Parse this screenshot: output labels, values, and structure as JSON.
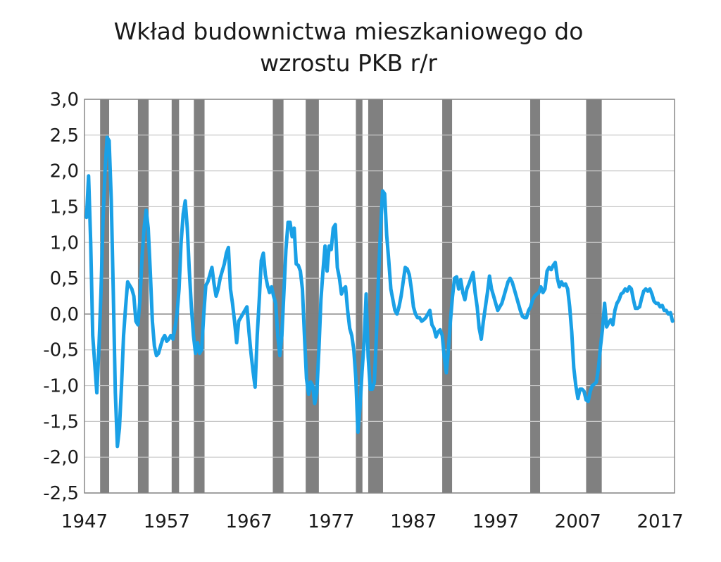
{
  "chart_data": {
    "type": "line",
    "title_lines": [
      "Wkład budownictwa mieszkaniowego do",
      "wzrostu PKB r/r"
    ],
    "xlabel": "",
    "ylabel": "",
    "xlim": [
      1947,
      2018.75
    ],
    "ylim": [
      -2.5,
      3.0
    ],
    "x_ticks": [
      1947,
      1957,
      1967,
      1977,
      1987,
      1997,
      2007,
      2017
    ],
    "y_ticks": [
      3.0,
      2.5,
      2.0,
      1.5,
      1.0,
      0.5,
      0.0,
      -0.5,
      -1.0,
      -1.5,
      -2.0,
      -2.5
    ],
    "y_tick_labels": [
      "3,0",
      "2,5",
      "2,0",
      "1,5",
      "1,0",
      "0,5",
      "0,0",
      "-0,5",
      "-1,0",
      "-1,5",
      "-2,0",
      "-2,5"
    ],
    "grid": true,
    "colors": {
      "line": "#1aa0e6",
      "recession": "#808080",
      "grid": "#c8c8c8",
      "axis": "#7f7f7f"
    },
    "recessions": [
      [
        1948.9,
        1950.0
      ],
      [
        1953.5,
        1954.8
      ],
      [
        1957.6,
        1958.5
      ],
      [
        1960.3,
        1961.6
      ],
      [
        1969.9,
        1971.2
      ],
      [
        1973.9,
        1975.5
      ],
      [
        1980.0,
        1980.8
      ],
      [
        1981.5,
        1983.3
      ],
      [
        1990.5,
        1991.7
      ],
      [
        2001.2,
        2002.4
      ],
      [
        2008.0,
        2009.9
      ]
    ],
    "series": [
      {
        "values": [
          [
            1947.25,
            1.35
          ],
          [
            1947.5,
            1.93
          ],
          [
            1947.75,
            1.0
          ],
          [
            1948.0,
            -0.3
          ],
          [
            1948.25,
            -0.7
          ],
          [
            1948.5,
            -1.1
          ],
          [
            1948.75,
            -0.5
          ],
          [
            1949.0,
            0.3
          ],
          [
            1949.25,
            1.3
          ],
          [
            1949.5,
            2.0
          ],
          [
            1949.75,
            2.47
          ],
          [
            1950.0,
            2.42
          ],
          [
            1950.25,
            1.6
          ],
          [
            1950.5,
            0.3
          ],
          [
            1950.75,
            -1.1
          ],
          [
            1951.0,
            -1.85
          ],
          [
            1951.25,
            -1.6
          ],
          [
            1951.5,
            -1.0
          ],
          [
            1951.75,
            -0.3
          ],
          [
            1952.0,
            0.1
          ],
          [
            1952.25,
            0.45
          ],
          [
            1952.5,
            0.4
          ],
          [
            1952.75,
            0.35
          ],
          [
            1953.0,
            0.25
          ],
          [
            1953.25,
            -0.1
          ],
          [
            1953.5,
            -0.15
          ],
          [
            1953.75,
            0.2
          ],
          [
            1954.0,
            0.8
          ],
          [
            1954.25,
            1.2
          ],
          [
            1954.5,
            1.45
          ],
          [
            1954.75,
            1.2
          ],
          [
            1955.0,
            0.6
          ],
          [
            1955.25,
            -0.1
          ],
          [
            1955.5,
            -0.45
          ],
          [
            1955.75,
            -0.58
          ],
          [
            1956.0,
            -0.55
          ],
          [
            1956.25,
            -0.45
          ],
          [
            1956.5,
            -0.35
          ],
          [
            1956.75,
            -0.3
          ],
          [
            1957.0,
            -0.38
          ],
          [
            1957.25,
            -0.35
          ],
          [
            1957.5,
            -0.3
          ],
          [
            1957.75,
            -0.35
          ],
          [
            1958.0,
            -0.2
          ],
          [
            1958.25,
            0.0
          ],
          [
            1958.5,
            0.35
          ],
          [
            1958.75,
            1.0
          ],
          [
            1959.0,
            1.4
          ],
          [
            1959.25,
            1.58
          ],
          [
            1959.5,
            1.2
          ],
          [
            1959.75,
            0.6
          ],
          [
            1960.0,
            0.1
          ],
          [
            1960.25,
            -0.3
          ],
          [
            1960.5,
            -0.55
          ],
          [
            1960.75,
            -0.4
          ],
          [
            1961.0,
            -0.55
          ],
          [
            1961.25,
            -0.5
          ],
          [
            1961.5,
            0.0
          ],
          [
            1961.75,
            0.4
          ],
          [
            1962.0,
            0.45
          ],
          [
            1962.25,
            0.55
          ],
          [
            1962.5,
            0.65
          ],
          [
            1962.75,
            0.42
          ],
          [
            1963.0,
            0.25
          ],
          [
            1963.25,
            0.35
          ],
          [
            1963.5,
            0.5
          ],
          [
            1963.75,
            0.6
          ],
          [
            1964.0,
            0.7
          ],
          [
            1964.25,
            0.85
          ],
          [
            1964.5,
            0.93
          ],
          [
            1964.75,
            0.35
          ],
          [
            1965.0,
            0.15
          ],
          [
            1965.25,
            -0.1
          ],
          [
            1965.5,
            -0.4
          ],
          [
            1965.75,
            -0.1
          ],
          [
            1966.0,
            -0.05
          ],
          [
            1966.25,
            0.0
          ],
          [
            1966.5,
            0.05
          ],
          [
            1966.75,
            0.1
          ],
          [
            1967.0,
            -0.25
          ],
          [
            1967.25,
            -0.55
          ],
          [
            1967.5,
            -0.8
          ],
          [
            1967.75,
            -1.02
          ],
          [
            1968.0,
            -0.3
          ],
          [
            1968.25,
            0.2
          ],
          [
            1968.5,
            0.75
          ],
          [
            1968.75,
            0.85
          ],
          [
            1969.0,
            0.55
          ],
          [
            1969.25,
            0.4
          ],
          [
            1969.5,
            0.3
          ],
          [
            1969.75,
            0.38
          ],
          [
            1970.0,
            0.25
          ],
          [
            1970.25,
            0.15
          ],
          [
            1970.5,
            -0.3
          ],
          [
            1970.75,
            -0.58
          ],
          [
            1971.0,
            -0.3
          ],
          [
            1971.25,
            0.3
          ],
          [
            1971.5,
            0.9
          ],
          [
            1971.75,
            1.28
          ],
          [
            1972.0,
            1.28
          ],
          [
            1972.25,
            1.08
          ],
          [
            1972.5,
            1.2
          ],
          [
            1972.75,
            0.7
          ],
          [
            1973.0,
            0.68
          ],
          [
            1973.25,
            0.6
          ],
          [
            1973.5,
            0.35
          ],
          [
            1973.75,
            -0.3
          ],
          [
            1974.0,
            -0.9
          ],
          [
            1974.25,
            -1.12
          ],
          [
            1974.5,
            -0.95
          ],
          [
            1974.75,
            -1.0
          ],
          [
            1975.0,
            -1.25
          ],
          [
            1975.25,
            -1.1
          ],
          [
            1975.5,
            -0.5
          ],
          [
            1975.75,
            0.2
          ],
          [
            1976.0,
            0.6
          ],
          [
            1976.25,
            0.95
          ],
          [
            1976.5,
            0.6
          ],
          [
            1976.75,
            0.95
          ],
          [
            1977.0,
            0.9
          ],
          [
            1977.25,
            1.2
          ],
          [
            1977.5,
            1.25
          ],
          [
            1977.75,
            0.65
          ],
          [
            1978.0,
            0.5
          ],
          [
            1978.25,
            0.28
          ],
          [
            1978.5,
            0.35
          ],
          [
            1978.75,
            0.38
          ],
          [
            1979.0,
            0.05
          ],
          [
            1979.25,
            -0.2
          ],
          [
            1979.5,
            -0.3
          ],
          [
            1979.75,
            -0.5
          ],
          [
            1980.0,
            -0.9
          ],
          [
            1980.25,
            -1.65
          ],
          [
            1980.5,
            -1.3
          ],
          [
            1980.75,
            -0.8
          ],
          [
            1981.0,
            -0.4
          ],
          [
            1981.25,
            0.28
          ],
          [
            1981.5,
            -0.6
          ],
          [
            1981.75,
            -1.05
          ],
          [
            1982.0,
            -1.05
          ],
          [
            1982.25,
            -0.95
          ],
          [
            1982.5,
            -0.3
          ],
          [
            1982.75,
            0.5
          ],
          [
            1983.0,
            1.2
          ],
          [
            1983.25,
            1.72
          ],
          [
            1983.5,
            1.68
          ],
          [
            1983.75,
            1.1
          ],
          [
            1984.0,
            0.75
          ],
          [
            1984.25,
            0.35
          ],
          [
            1984.5,
            0.2
          ],
          [
            1984.75,
            0.05
          ],
          [
            1985.0,
            0.0
          ],
          [
            1985.25,
            0.1
          ],
          [
            1985.5,
            0.25
          ],
          [
            1985.75,
            0.45
          ],
          [
            1986.0,
            0.65
          ],
          [
            1986.25,
            0.63
          ],
          [
            1986.5,
            0.55
          ],
          [
            1986.75,
            0.35
          ],
          [
            1987.0,
            0.1
          ],
          [
            1987.25,
            0.0
          ],
          [
            1987.5,
            -0.05
          ],
          [
            1987.75,
            -0.05
          ],
          [
            1988.0,
            -0.1
          ],
          [
            1988.25,
            -0.08
          ],
          [
            1988.5,
            -0.05
          ],
          [
            1988.75,
            0.0
          ],
          [
            1989.0,
            0.05
          ],
          [
            1989.25,
            -0.15
          ],
          [
            1989.5,
            -0.2
          ],
          [
            1989.75,
            -0.32
          ],
          [
            1990.0,
            -0.25
          ],
          [
            1990.25,
            -0.22
          ],
          [
            1990.5,
            -0.3
          ],
          [
            1990.75,
            -0.6
          ],
          [
            1991.0,
            -0.82
          ],
          [
            1991.25,
            -0.5
          ],
          [
            1991.5,
            -0.1
          ],
          [
            1991.75,
            0.25
          ],
          [
            1992.0,
            0.5
          ],
          [
            1992.25,
            0.52
          ],
          [
            1992.5,
            0.35
          ],
          [
            1992.75,
            0.48
          ],
          [
            1993.0,
            0.3
          ],
          [
            1993.25,
            0.2
          ],
          [
            1993.5,
            0.35
          ],
          [
            1993.75,
            0.42
          ],
          [
            1994.0,
            0.5
          ],
          [
            1994.25,
            0.58
          ],
          [
            1994.5,
            0.3
          ],
          [
            1994.75,
            0.1
          ],
          [
            1995.0,
            -0.2
          ],
          [
            1995.25,
            -0.35
          ],
          [
            1995.5,
            -0.1
          ],
          [
            1995.75,
            0.1
          ],
          [
            1996.0,
            0.3
          ],
          [
            1996.25,
            0.53
          ],
          [
            1996.5,
            0.35
          ],
          [
            1996.75,
            0.25
          ],
          [
            1997.0,
            0.15
          ],
          [
            1997.25,
            0.05
          ],
          [
            1997.5,
            0.1
          ],
          [
            1997.75,
            0.15
          ],
          [
            1998.0,
            0.25
          ],
          [
            1998.25,
            0.35
          ],
          [
            1998.5,
            0.45
          ],
          [
            1998.75,
            0.5
          ],
          [
            1999.0,
            0.45
          ],
          [
            1999.25,
            0.35
          ],
          [
            1999.5,
            0.25
          ],
          [
            1999.75,
            0.15
          ],
          [
            2000.0,
            0.05
          ],
          [
            2000.25,
            -0.03
          ],
          [
            2000.5,
            -0.05
          ],
          [
            2000.75,
            -0.05
          ],
          [
            2001.0,
            0.05
          ],
          [
            2001.25,
            0.1
          ],
          [
            2001.5,
            0.2
          ],
          [
            2001.75,
            0.25
          ],
          [
            2002.0,
            0.28
          ],
          [
            2002.25,
            0.3
          ],
          [
            2002.5,
            0.38
          ],
          [
            2002.75,
            0.3
          ],
          [
            2003.0,
            0.35
          ],
          [
            2003.25,
            0.6
          ],
          [
            2003.5,
            0.65
          ],
          [
            2003.75,
            0.62
          ],
          [
            2004.0,
            0.68
          ],
          [
            2004.25,
            0.72
          ],
          [
            2004.5,
            0.5
          ],
          [
            2004.75,
            0.38
          ],
          [
            2005.0,
            0.45
          ],
          [
            2005.25,
            0.4
          ],
          [
            2005.5,
            0.42
          ],
          [
            2005.75,
            0.35
          ],
          [
            2006.0,
            0.1
          ],
          [
            2006.25,
            -0.25
          ],
          [
            2006.5,
            -0.75
          ],
          [
            2006.75,
            -1.0
          ],
          [
            2007.0,
            -1.18
          ],
          [
            2007.25,
            -1.05
          ],
          [
            2007.5,
            -1.05
          ],
          [
            2007.75,
            -1.08
          ],
          [
            2008.0,
            -1.2
          ],
          [
            2008.25,
            -1.22
          ],
          [
            2008.5,
            -1.08
          ],
          [
            2008.75,
            -1.0
          ],
          [
            2009.0,
            -0.98
          ],
          [
            2009.25,
            -0.95
          ],
          [
            2009.5,
            -0.75
          ],
          [
            2009.75,
            -0.45
          ],
          [
            2010.0,
            -0.2
          ],
          [
            2010.25,
            0.15
          ],
          [
            2010.5,
            -0.18
          ],
          [
            2010.75,
            -0.12
          ],
          [
            2011.0,
            -0.08
          ],
          [
            2011.25,
            -0.15
          ],
          [
            2011.5,
            0.05
          ],
          [
            2011.75,
            0.15
          ],
          [
            2012.0,
            0.2
          ],
          [
            2012.25,
            0.28
          ],
          [
            2012.5,
            0.3
          ],
          [
            2012.75,
            0.35
          ],
          [
            2013.0,
            0.32
          ],
          [
            2013.25,
            0.38
          ],
          [
            2013.5,
            0.35
          ],
          [
            2013.75,
            0.2
          ],
          [
            2014.0,
            0.08
          ],
          [
            2014.25,
            0.08
          ],
          [
            2014.5,
            0.1
          ],
          [
            2014.75,
            0.22
          ],
          [
            2015.0,
            0.32
          ],
          [
            2015.25,
            0.35
          ],
          [
            2015.5,
            0.32
          ],
          [
            2015.75,
            0.35
          ],
          [
            2016.0,
            0.28
          ],
          [
            2016.25,
            0.18
          ],
          [
            2016.5,
            0.15
          ],
          [
            2016.75,
            0.15
          ],
          [
            2017.0,
            0.1
          ],
          [
            2017.25,
            0.12
          ],
          [
            2017.5,
            0.05
          ],
          [
            2017.75,
            0.05
          ],
          [
            2018.0,
            0.0
          ],
          [
            2018.25,
            0.02
          ],
          [
            2018.5,
            -0.1
          ]
        ]
      }
    ]
  }
}
